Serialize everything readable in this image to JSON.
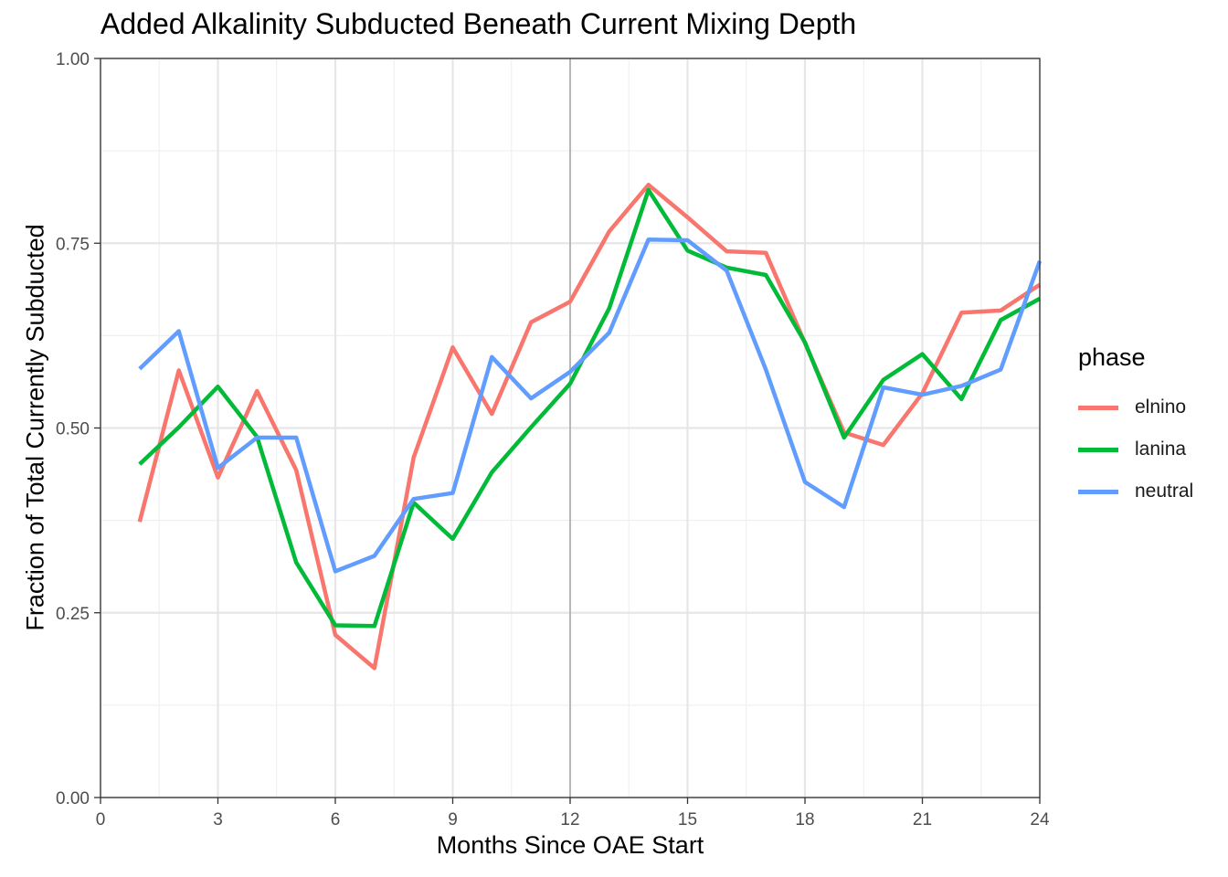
{
  "chart_data": {
    "type": "line",
    "title": "Added Alkalinity Subducted Beneath Current Mixing Depth",
    "xlabel": "Months Since OAE Start",
    "ylabel": "Fraction of Total Currently Subducted",
    "xlim": [
      0,
      24
    ],
    "ylim": [
      0,
      1
    ],
    "xticks": [
      0,
      3,
      6,
      9,
      12,
      15,
      18,
      21,
      24
    ],
    "xtick_labels": [
      "0",
      "3",
      "6",
      "9",
      "12",
      "15",
      "18",
      "21",
      "24"
    ],
    "yticks": [
      0,
      0.25,
      0.5,
      0.75,
      1.0
    ],
    "ytick_labels": [
      "0.00",
      "0.25",
      "0.50",
      "0.75",
      "1.00"
    ],
    "vline_x": 12,
    "grid": true,
    "legend": {
      "title": "phase",
      "position": "right"
    },
    "x": [
      1,
      2,
      3,
      4,
      5,
      6,
      7,
      8,
      9,
      10,
      11,
      12,
      13,
      14,
      15,
      16,
      17,
      18,
      19,
      20,
      21,
      22,
      23,
      24
    ],
    "series": [
      {
        "name": "elnino",
        "color": "#F8766D",
        "values": [
          0.373,
          0.578,
          0.433,
          0.55,
          0.443,
          0.22,
          0.175,
          0.46,
          0.609,
          0.519,
          0.643,
          0.671,
          0.766,
          0.829,
          0.785,
          0.739,
          0.737,
          0.615,
          0.494,
          0.477,
          0.547,
          0.656,
          0.659,
          0.694
        ]
      },
      {
        "name": "lanina",
        "color": "#00BA38",
        "values": [
          0.451,
          0.501,
          0.556,
          0.488,
          0.318,
          0.233,
          0.232,
          0.399,
          0.35,
          0.44,
          0.501,
          0.56,
          0.662,
          0.822,
          0.74,
          0.717,
          0.707,
          0.616,
          0.487,
          0.565,
          0.6,
          0.539,
          0.646,
          0.675
        ]
      },
      {
        "name": "neutral",
        "color": "#619CFF",
        "values": [
          0.58,
          0.631,
          0.446,
          0.487,
          0.487,
          0.306,
          0.327,
          0.404,
          0.412,
          0.596,
          0.54,
          0.576,
          0.629,
          0.755,
          0.754,
          0.713,
          0.579,
          0.427,
          0.393,
          0.555,
          0.545,
          0.557,
          0.579,
          0.726
        ]
      }
    ]
  }
}
